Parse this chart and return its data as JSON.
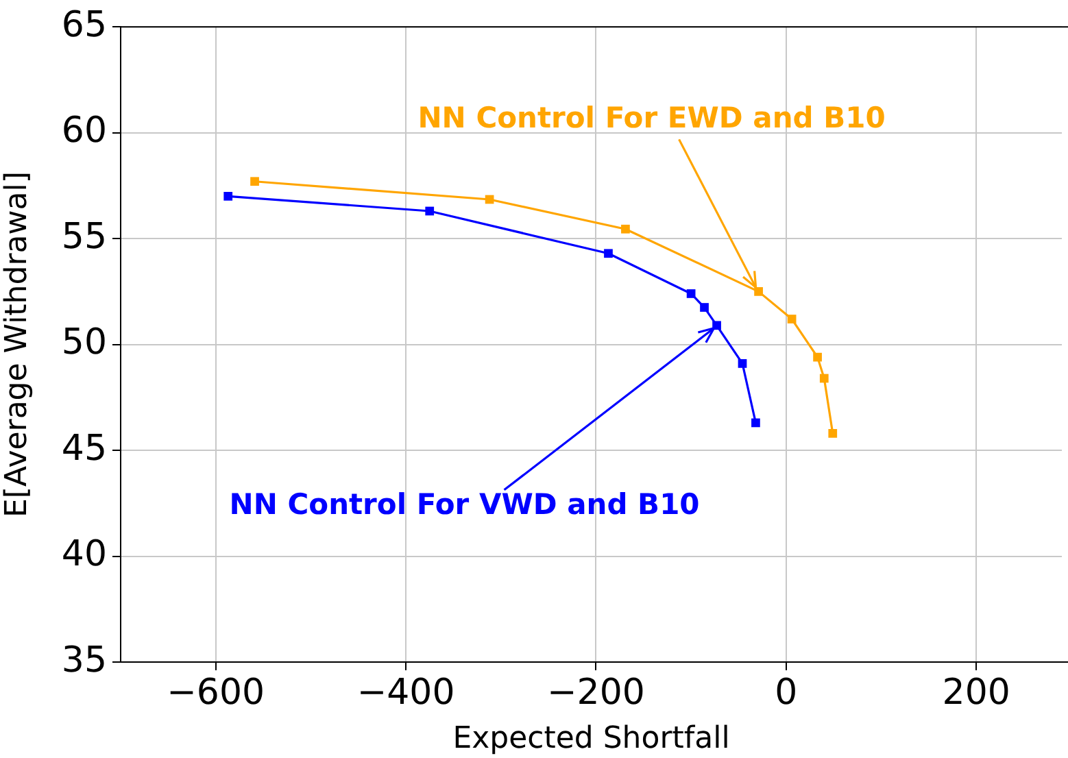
{
  "chart_data": {
    "type": "line",
    "xlabel": "Expected Shortfall",
    "ylabel": "E[Average Withdrawal]",
    "xlim": [
      -700,
      290
    ],
    "ylim": [
      35,
      65
    ],
    "xticks": [
      -600,
      -400,
      -200,
      0,
      200
    ],
    "yticks": [
      35,
      40,
      45,
      50,
      55,
      60,
      65
    ],
    "grid": true,
    "legend": false,
    "marker": "square",
    "line_style": "solid",
    "series": [
      {
        "color": "#ffa500",
        "x": [
          -559,
          -312,
          -169,
          -29,
          6,
          33,
          40,
          49
        ],
        "values": [
          57.7,
          56.85,
          55.45,
          52.5,
          51.2,
          49.4,
          48.4,
          45.8
        ]
      },
      {
        "color": "#0000ff",
        "x": [
          -587,
          -375,
          -187,
          -100,
          -86,
          -73,
          -46,
          -32
        ],
        "values": [
          57.0,
          56.3,
          54.3,
          52.4,
          51.75,
          50.9,
          49.1,
          46.3
        ]
      }
    ],
    "annotations": [
      {
        "text": "NN Control For EWD and B10",
        "x": -29,
        "y": 52.5
      },
      {
        "text": "NN Control For VWD and B10",
        "x": -73,
        "y": 50.9
      }
    ]
  }
}
